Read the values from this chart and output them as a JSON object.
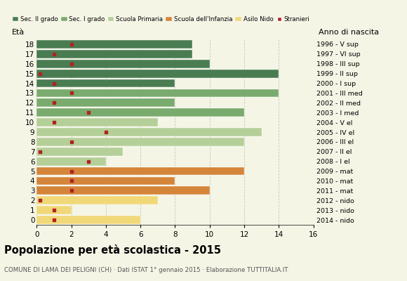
{
  "ages": [
    18,
    17,
    16,
    15,
    14,
    13,
    12,
    11,
    10,
    9,
    8,
    7,
    6,
    5,
    4,
    3,
    2,
    1,
    0
  ],
  "years": [
    "1996 - V sup",
    "1997 - VI sup",
    "1998 - III sup",
    "1999 - II sup",
    "2000 - I sup",
    "2001 - III med",
    "2002 - II med",
    "2003 - I med",
    "2004 - V el",
    "2005 - IV el",
    "2006 - III el",
    "2007 - II el",
    "2008 - I el",
    "2009 - mat",
    "2010 - mat",
    "2011 - mat",
    "2012 - nido",
    "2013 - nido",
    "2014 - nido"
  ],
  "bar_values": [
    9,
    9,
    10,
    14,
    8,
    14,
    8,
    12,
    7,
    13,
    12,
    5,
    4,
    12,
    8,
    10,
    7,
    2,
    6
  ],
  "stranieri": [
    2,
    1,
    2,
    0.2,
    1,
    2,
    1,
    3,
    1,
    4,
    2,
    0.2,
    3,
    2,
    2,
    2,
    0.2,
    1,
    1
  ],
  "bar_colors": [
    "#4a7c52",
    "#4a7c52",
    "#4a7c52",
    "#4a7c52",
    "#4a7c52",
    "#7aab6e",
    "#7aab6e",
    "#7aab6e",
    "#b5cf98",
    "#b5cf98",
    "#b5cf98",
    "#b5cf98",
    "#b5cf98",
    "#d4853a",
    "#d4853a",
    "#d4853a",
    "#f0d878",
    "#f0d878",
    "#f0d878"
  ],
  "legend_labels": [
    "Sec. II grado",
    "Sec. I grado",
    "Scuola Primaria",
    "Scuola dell'Infanzia",
    "Asilo Nido",
    "Stranieri"
  ],
  "legend_colors": [
    "#4a7c52",
    "#7aab6e",
    "#b5cf98",
    "#d4853a",
    "#f0d878",
    "#b22222"
  ],
  "title": "Popolazione per età scolastica - 2015",
  "subtitle": "COMUNE DI LAMA DEI PELIGNI (CH) · Dati ISTAT 1° gennaio 2015 · Elaborazione TUTTITALIA.IT",
  "label_eta": "Età",
  "label_anno": "Anno di nascita",
  "xlim": [
    0,
    16
  ],
  "bg_color": "#f5f5e6",
  "stranieri_color": "#b22222",
  "grid_color": "#bbbbbb"
}
